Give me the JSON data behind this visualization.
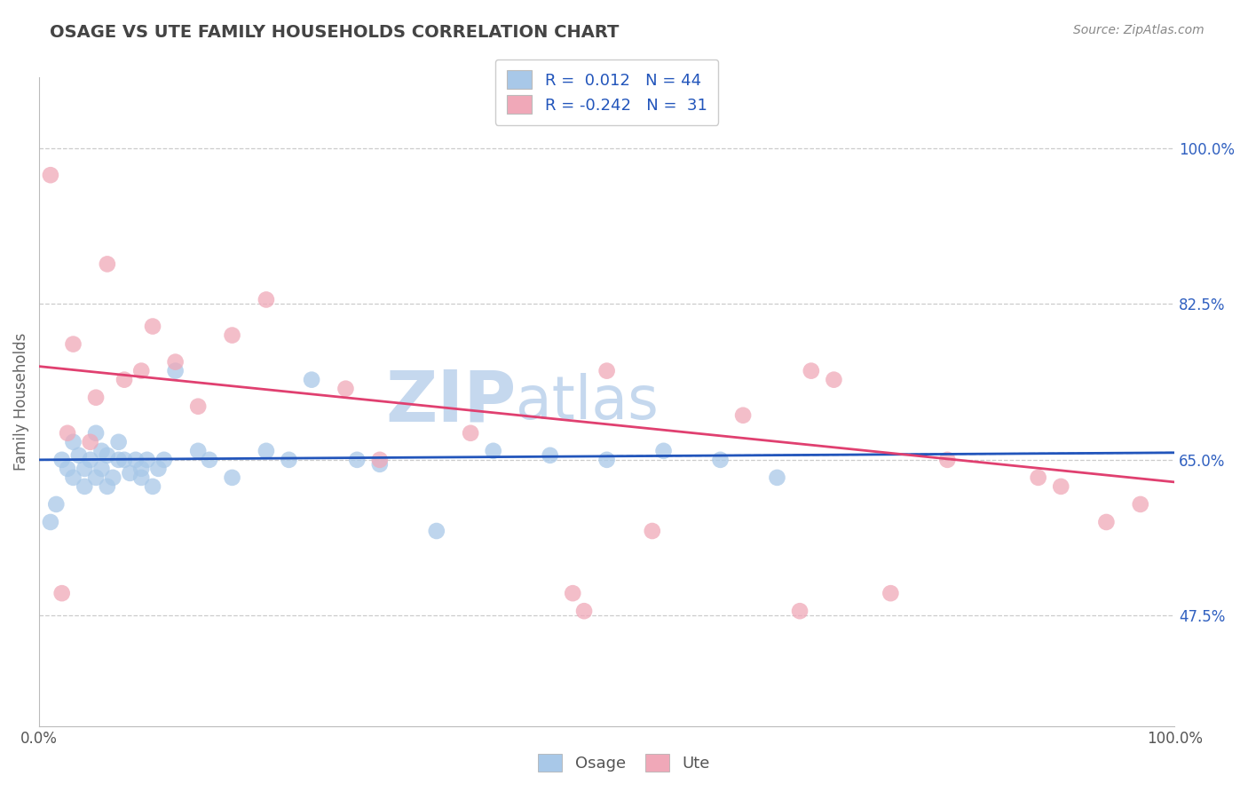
{
  "title": "OSAGE VS UTE FAMILY HOUSEHOLDS CORRELATION CHART",
  "source_text": "Source: ZipAtlas.com",
  "ylabel": "Family Households",
  "x_min": 0.0,
  "x_max": 100.0,
  "y_min": 35.0,
  "y_max": 108.0,
  "y_ticks": [
    47.5,
    65.0,
    82.5,
    100.0
  ],
  "osage_R": 0.012,
  "osage_N": 44,
  "ute_R": -0.242,
  "ute_N": 31,
  "osage_color": "#a8c8e8",
  "ute_color": "#f0a8b8",
  "osage_line_color": "#2255bb",
  "ute_line_color": "#e04070",
  "background_color": "#ffffff",
  "grid_color": "#cccccc",
  "title_color": "#444444",
  "legend_text_color": "#2255bb",
  "watermark_color": "#c5d8ee",
  "osage_x": [
    1.0,
    1.5,
    2.0,
    2.5,
    3.0,
    3.0,
    3.5,
    4.0,
    4.0,
    4.5,
    5.0,
    5.0,
    5.5,
    5.5,
    6.0,
    6.0,
    6.5,
    7.0,
    7.0,
    7.5,
    8.0,
    8.5,
    9.0,
    9.0,
    9.5,
    10.0,
    10.5,
    11.0,
    12.0,
    14.0,
    15.0,
    17.0,
    20.0,
    22.0,
    24.0,
    28.0,
    30.0,
    35.0,
    40.0,
    45.0,
    50.0,
    55.0,
    60.0,
    65.0
  ],
  "osage_y": [
    58.0,
    60.0,
    65.0,
    64.0,
    67.0,
    63.0,
    65.5,
    64.0,
    62.0,
    65.0,
    68.0,
    63.0,
    66.0,
    64.0,
    65.5,
    62.0,
    63.0,
    65.0,
    67.0,
    65.0,
    63.5,
    65.0,
    64.0,
    63.0,
    65.0,
    62.0,
    64.0,
    65.0,
    75.0,
    66.0,
    65.0,
    63.0,
    66.0,
    65.0,
    74.0,
    65.0,
    64.5,
    57.0,
    66.0,
    65.5,
    65.0,
    66.0,
    65.0,
    63.0
  ],
  "ute_x": [
    1.0,
    2.0,
    3.0,
    5.0,
    6.0,
    7.5,
    9.0,
    10.0,
    12.0,
    14.0,
    17.0,
    20.0,
    27.0,
    30.0,
    38.0,
    47.0,
    50.0,
    54.0,
    62.0,
    68.0,
    70.0,
    75.0,
    80.0,
    88.0,
    90.0,
    94.0,
    97.0,
    48.0,
    67.0,
    2.5,
    4.5
  ],
  "ute_y": [
    97.0,
    50.0,
    78.0,
    72.0,
    87.0,
    74.0,
    75.0,
    80.0,
    76.0,
    71.0,
    79.0,
    83.0,
    73.0,
    65.0,
    68.0,
    50.0,
    75.0,
    57.0,
    70.0,
    75.0,
    74.0,
    50.0,
    65.0,
    63.0,
    62.0,
    58.0,
    60.0,
    48.0,
    48.0,
    68.0,
    67.0
  ],
  "osage_trendline_y0": 65.0,
  "osage_trendline_y1": 65.8,
  "ute_trendline_y0": 75.5,
  "ute_trendline_y1": 62.5
}
